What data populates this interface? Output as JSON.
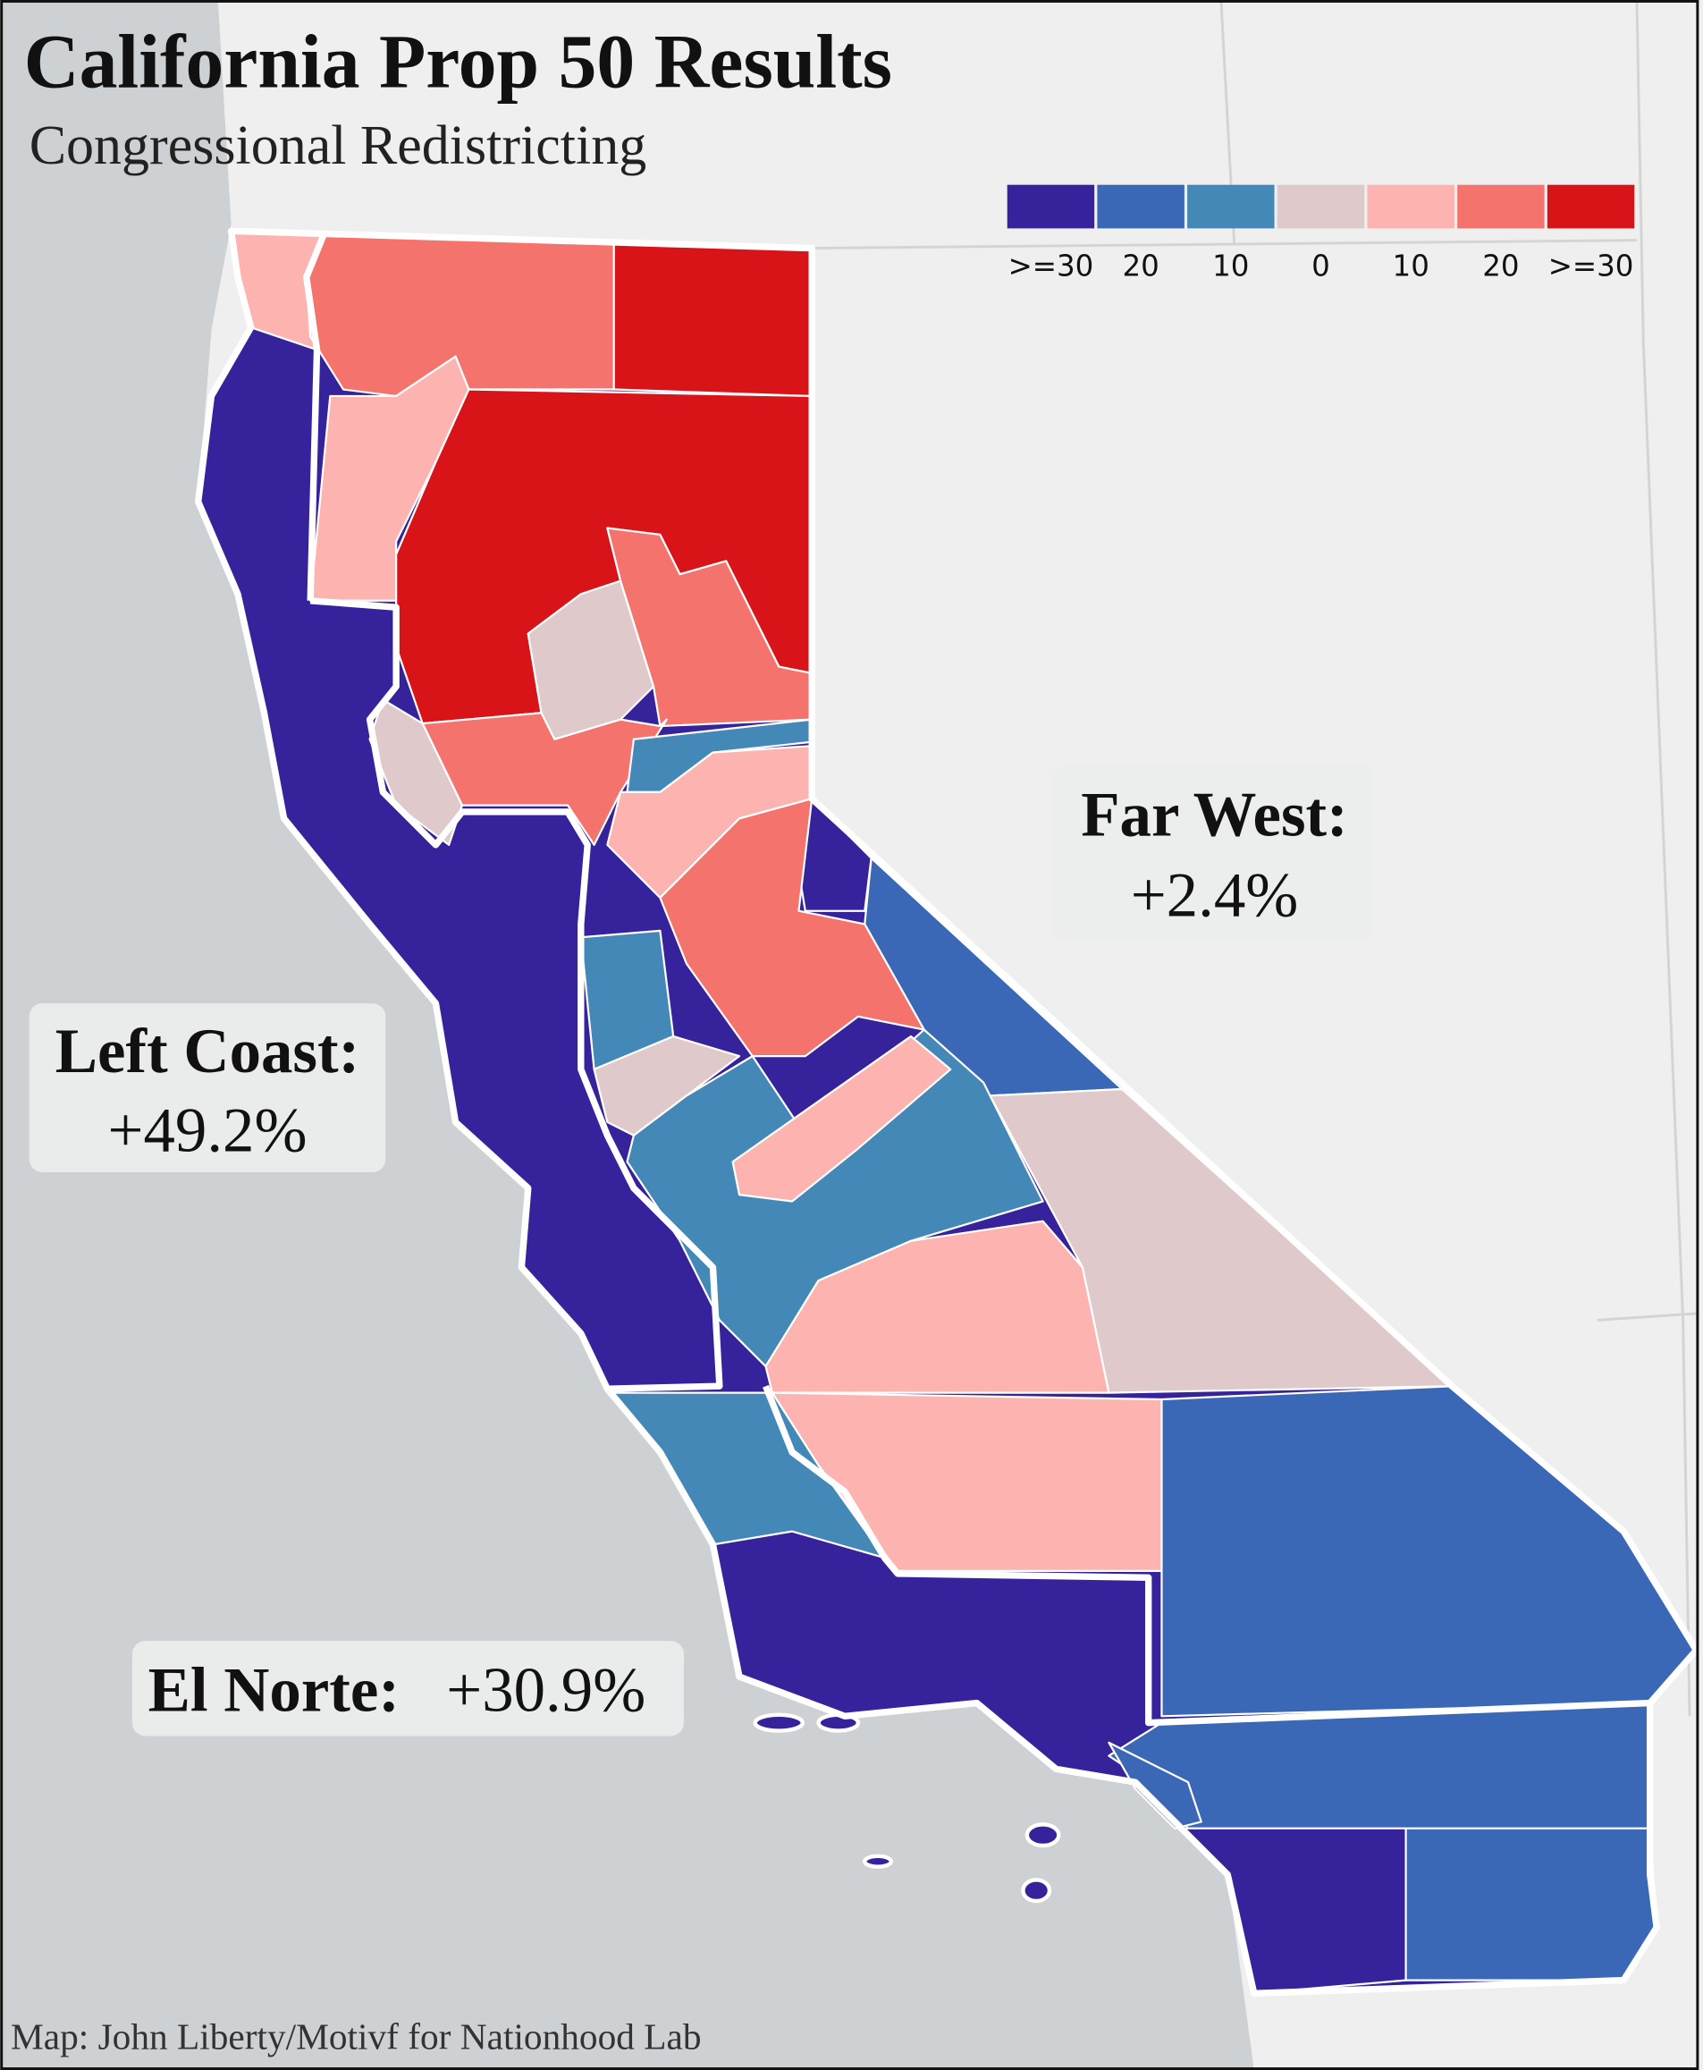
{
  "header": {
    "title": "California Prop 50 Results",
    "subtitle": "Congressional Redistricting"
  },
  "legend": {
    "items": [
      {
        "label": ">=30",
        "color": "#36229a"
      },
      {
        "label": "20",
        "color": "#3a67b6"
      },
      {
        "label": "10",
        "color": "#4488b8"
      },
      {
        "label": "0",
        "color": "#dfc9ca"
      },
      {
        "label": "10",
        "color": "#fdb4b0"
      },
      {
        "label": "20",
        "color": "#f4736d"
      },
      {
        "label": ">=30",
        "color": "#d81419"
      }
    ]
  },
  "regions": [
    {
      "name": "Far West:",
      "margin": "+2.4%"
    },
    {
      "name": "Left Coast:",
      "margin": "+49.2%"
    },
    {
      "name": "El Norte:",
      "margin": "+30.9%"
    }
  ],
  "credit": "Map: John Liberty/Motivf for Nationhood Lab"
}
